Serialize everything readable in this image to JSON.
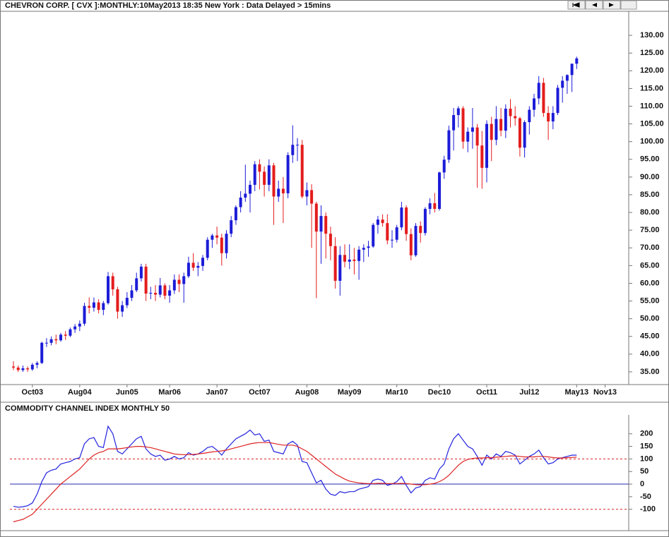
{
  "chart_data": [
    {
      "type": "candlestick",
      "title": "CHEVRON CORP. [ CVX ]:MONTHLY:10May2013 18:35 New York : Data Delayed > 15mins",
      "up_color": "#1c1cd8",
      "down_color": "#e41c1c",
      "xlim": [
        -0.75,
        130
      ],
      "xticks": [
        {
          "value": 4,
          "label": "Oct03"
        },
        {
          "value": 14,
          "label": "Aug04"
        },
        {
          "value": 24,
          "label": "Jun05"
        },
        {
          "value": 33,
          "label": "Mar06"
        },
        {
          "value": 43,
          "label": "Jan07"
        },
        {
          "value": 52,
          "label": "Oct07"
        },
        {
          "value": 62,
          "label": "Aug08"
        },
        {
          "value": 71,
          "label": "May09"
        },
        {
          "value": 81,
          "label": "Mar10"
        },
        {
          "value": 90,
          "label": "Dec10"
        },
        {
          "value": 100,
          "label": "Oct11"
        },
        {
          "value": 109,
          "label": "Jul12"
        },
        {
          "value": 119,
          "label": "May13"
        },
        {
          "value": 125,
          "label": "Nov13"
        }
      ],
      "ylim": [
        31.4,
        136.8
      ],
      "yticks": [
        {
          "value": 35,
          "label": "35.00"
        },
        {
          "value": 40,
          "label": "40.00"
        },
        {
          "value": 45,
          "label": "45.00"
        },
        {
          "value": 50,
          "label": "50.00"
        },
        {
          "value": 55,
          "label": "55.00"
        },
        {
          "value": 60,
          "label": "60.00"
        },
        {
          "value": 65,
          "label": "65.00"
        },
        {
          "value": 70,
          "label": "70.00"
        },
        {
          "value": 75,
          "label": "75.00"
        },
        {
          "value": 80,
          "label": "80.00"
        },
        {
          "value": 85,
          "label": "85.00"
        },
        {
          "value": 90,
          "label": "90.00"
        },
        {
          "value": 95,
          "label": "95.00"
        },
        {
          "value": 100,
          "label": "100.00"
        },
        {
          "value": 105,
          "label": "105.00"
        },
        {
          "value": 110,
          "label": "110.00"
        },
        {
          "value": 115,
          "label": "115.00"
        },
        {
          "value": 120,
          "label": "120.00"
        },
        {
          "value": 125,
          "label": "125.00"
        },
        {
          "value": 130,
          "label": "130.00"
        }
      ],
      "open": [
        36.5,
        36.2,
        35.5,
        36,
        35.7,
        37,
        37.5,
        43.2,
        43.2,
        44.2,
        43.9,
        45.5,
        45.2,
        47,
        47.8,
        48.6,
        53.6,
        53.1,
        54.6,
        52.5,
        54.4,
        62,
        58.3,
        52,
        53.8,
        55.9,
        58,
        61.4,
        64.7,
        57.1,
        57.3,
        56.8,
        59.4,
        56.5,
        58,
        61,
        59.8,
        62,
        65.8,
        64.4,
        64.9,
        67.2,
        72.3,
        73.5,
        72.9,
        68.5,
        74,
        77.8,
        81.5,
        84.2,
        85.3,
        87.8,
        93.6,
        91.5,
        87.8,
        93.3,
        84.5,
        86.7,
        85.4,
        96.2,
        99.1,
        99.1,
        84.5,
        86.3,
        82.5,
        74.6,
        79,
        74,
        70.5,
        60.7,
        68,
        66.1,
        66.7,
        66.3,
        69.5,
        70,
        70.4,
        76.5,
        78,
        77,
        72.1,
        72.3,
        75.8,
        81.4,
        73.9,
        67.9,
        76.2,
        74.2,
        81,
        82.6,
        81,
        91.3,
        94.9,
        103.2,
        107.5,
        109.4,
        100,
        102.8,
        104,
        98.9,
        92.6,
        105,
        100.5,
        106.4,
        103.1,
        109.3,
        107.2,
        106.6,
        98.3,
        105.5,
        109,
        112.2,
        116.6,
        108.1,
        105.7,
        108.1,
        115.2,
        117.2,
        118.8,
        122
      ],
      "high": [
        38,
        36.8,
        36.8,
        36.5,
        37.5,
        38,
        43.5,
        44.5,
        45,
        45.5,
        46,
        46.5,
        47.5,
        48.5,
        49.5,
        54.5,
        56,
        56,
        55.5,
        55,
        63.2,
        63,
        59,
        55,
        57.5,
        59.5,
        63,
        65.5,
        65.5,
        59,
        59.5,
        61.5,
        60,
        59.5,
        62.5,
        62.5,
        63,
        67.5,
        68.5,
        66,
        68,
        73,
        74,
        76,
        74,
        75,
        79,
        82,
        86,
        93.5,
        89,
        94.5,
        95,
        93,
        95,
        94,
        89,
        90,
        97,
        104.6,
        101,
        100.5,
        88.5,
        88,
        83,
        82,
        80,
        76,
        73,
        70.5,
        71,
        71,
        70,
        70.5,
        71,
        72,
        77,
        79,
        79.5,
        79.5,
        75,
        76.5,
        83,
        82,
        75.5,
        77,
        77.5,
        81.5,
        84,
        85.5,
        91.5,
        96,
        104.5,
        109.5,
        110,
        110,
        104,
        109.5,
        105,
        103,
        106,
        107,
        110,
        109.5,
        110.5,
        112,
        110,
        107,
        106,
        110,
        113.5,
        118.5,
        118,
        110,
        110,
        116,
        118.5,
        119,
        122,
        124
      ],
      "low": [
        35.5,
        35,
        35,
        35,
        35.3,
        36,
        37.2,
        42,
        42.5,
        42.8,
        43.5,
        44,
        44.8,
        46,
        46.5,
        48,
        51.5,
        52,
        51.5,
        51,
        54,
        56.5,
        50,
        50.5,
        53,
        55,
        57.5,
        60.5,
        55,
        55.5,
        55,
        56,
        55.5,
        54.5,
        57,
        57.5,
        54.5,
        61.5,
        63.5,
        62,
        63.5,
        66.5,
        70,
        71,
        65,
        67,
        73,
        76.5,
        80,
        83,
        80,
        86,
        86.5,
        84.5,
        86,
        76.5,
        83,
        77,
        84,
        94,
        94.5,
        84,
        82,
        70,
        55.8,
        65.5,
        67,
        66.5,
        58.5,
        56.5,
        64.5,
        64,
        62.5,
        61,
        66,
        67.5,
        70,
        74,
        76,
        71,
        70,
        71.5,
        75,
        72,
        66.5,
        67.5,
        71.5,
        73.5,
        79.5,
        80,
        80.5,
        89.5,
        94,
        97.5,
        104,
        98,
        97,
        98,
        87,
        86.7,
        88.5,
        94.5,
        99,
        101.5,
        101,
        104,
        104.5,
        95.8,
        95.5,
        102,
        107,
        110.5,
        107,
        100.5,
        103.5,
        107.5,
        111,
        113.5,
        114,
        120.5
      ],
      "close": [
        36.2,
        35.5,
        36,
        35.7,
        37,
        37.5,
        43.2,
        43.2,
        44.2,
        43.9,
        45.5,
        45.2,
        47,
        47.8,
        48.6,
        53.6,
        53.1,
        54.6,
        52.5,
        54.4,
        62,
        58.3,
        52,
        53.8,
        55.9,
        58,
        61.4,
        64.7,
        57.1,
        57.3,
        56.8,
        59.4,
        56.5,
        58,
        61,
        59.8,
        62,
        65.8,
        64.4,
        64.9,
        67.2,
        72.3,
        73.5,
        72.9,
        68.5,
        74,
        77.8,
        81.5,
        84.2,
        85.3,
        87.8,
        93.6,
        91.5,
        87.8,
        93.3,
        84.5,
        86.7,
        85.4,
        96.2,
        99.1,
        99.1,
        84.5,
        86.3,
        82.5,
        74.6,
        79,
        74,
        70.5,
        60.7,
        68,
        66.1,
        66.7,
        66.3,
        69.5,
        70,
        70.4,
        76.5,
        78,
        77,
        72.1,
        72.3,
        75.8,
        81.4,
        73.9,
        67.9,
        76.2,
        74.2,
        81,
        82.6,
        81,
        91.3,
        94.9,
        103.2,
        107.5,
        109.4,
        100,
        102.8,
        104,
        98.9,
        92.6,
        105,
        100.5,
        106.4,
        103.1,
        109.3,
        107.2,
        106.6,
        98.3,
        105.5,
        109,
        112.2,
        116.6,
        108.1,
        105.7,
        108.1,
        115.2,
        117.2,
        118.8,
        122,
        123.5
      ]
    },
    {
      "type": "line",
      "title": "COMMODITY CHANNEL INDEX MONTHLY 50",
      "xlim": [
        -0.75,
        130
      ],
      "ylim": [
        -185,
        275
      ],
      "yticks": [
        200,
        150,
        100,
        50,
        0,
        -50,
        -100
      ],
      "ref_lines": [
        {
          "value": 100,
          "color": "#d42020",
          "dashed": true
        },
        {
          "value": 0,
          "color": "#2a2ab0",
          "dashed": false
        },
        {
          "value": -100,
          "color": "#d42020",
          "dashed": true
        }
      ],
      "series": [
        {
          "color": "#2222dd",
          "values": [
            -88,
            -92,
            -90,
            -86,
            -75,
            -40,
            10,
            45,
            55,
            60,
            80,
            85,
            90,
            100,
            105,
            160,
            180,
            185,
            150,
            145,
            230,
            200,
            130,
            120,
            140,
            160,
            180,
            190,
            140,
            120,
            110,
            115,
            95,
            100,
            110,
            100,
            105,
            125,
            115,
            120,
            130,
            145,
            150,
            135,
            115,
            140,
            160,
            180,
            190,
            200,
            215,
            195,
            200,
            170,
            175,
            130,
            125,
            120,
            160,
            170,
            155,
            90,
            85,
            45,
            5,
            15,
            -20,
            -40,
            -45,
            -30,
            -35,
            -30,
            -30,
            -20,
            -15,
            -10,
            15,
            20,
            15,
            -5,
            0,
            10,
            30,
            -5,
            -35,
            -15,
            -10,
            15,
            25,
            20,
            60,
            80,
            140,
            180,
            200,
            175,
            150,
            140,
            110,
            75,
            115,
            100,
            120,
            110,
            130,
            125,
            115,
            80,
            95,
            110,
            120,
            135,
            105,
            80,
            85,
            100,
            105,
            110,
            115,
            115
          ]
        },
        {
          "color": "#dd2222",
          "values": [
            -150,
            -145,
            -140,
            -130,
            -120,
            -100,
            -80,
            -60,
            -40,
            -20,
            0,
            15,
            30,
            45,
            60,
            80,
            100,
            115,
            125,
            130,
            140,
            140,
            140,
            142,
            145,
            148,
            150,
            150,
            148,
            145,
            140,
            135,
            130,
            125,
            120,
            118,
            117,
            117,
            118,
            120,
            122,
            125,
            128,
            130,
            132,
            135,
            140,
            145,
            150,
            155,
            160,
            163,
            165,
            165,
            165,
            162,
            158,
            155,
            155,
            155,
            150,
            140,
            130,
            115,
            100,
            85,
            70,
            55,
            40,
            30,
            20,
            12,
            8,
            5,
            3,
            2,
            2,
            3,
            3,
            2,
            2,
            2,
            3,
            2,
            0,
            -2,
            -3,
            -2,
            0,
            3,
            10,
            20,
            35,
            55,
            75,
            90,
            98,
            102,
            104,
            104,
            105,
            105,
            107,
            108,
            110,
            112,
            112,
            110,
            108,
            108,
            108,
            110,
            110,
            108,
            106,
            104,
            104,
            105,
            106,
            107
          ]
        }
      ]
    }
  ]
}
